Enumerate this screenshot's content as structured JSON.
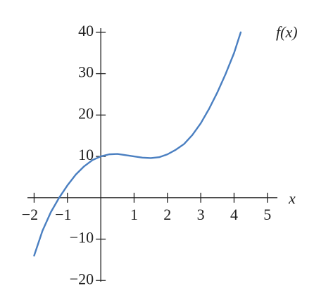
{
  "chart_data": {
    "type": "line",
    "x": [
      -2,
      -1.75,
      -1.5,
      -1.25,
      -1,
      -0.75,
      -0.5,
      -0.25,
      0,
      0.25,
      0.5,
      0.75,
      1,
      1.25,
      1.5,
      1.75,
      2,
      2.25,
      2.5,
      2.75,
      3,
      3.25,
      3.5,
      3.75,
      4,
      4.2
    ],
    "series": [
      {
        "name": "f(x)",
        "color": "#4a7fc1",
        "values": [
          -14,
          -8,
          -3.5,
          0,
          3,
          5.6,
          7.6,
          9.1,
          10,
          10.5,
          10.6,
          10.3,
          10,
          9.7,
          9.6,
          9.8,
          10.5,
          11.6,
          13,
          15.2,
          18,
          21.5,
          25.5,
          30,
          35,
          40
        ]
      }
    ],
    "xlabel": "x",
    "xlim": [
      -2.2,
      5.3
    ],
    "ylim": [
      -20.3,
      41
    ],
    "xticks": [
      {
        "value": -2,
        "label": "−2"
      },
      {
        "value": -1,
        "label": "−1"
      },
      1,
      2,
      3,
      4,
      5
    ],
    "yticks": [
      {
        "value": -20,
        "label": "−20"
      },
      {
        "value": -10,
        "label": "−10"
      },
      10,
      20,
      30,
      40
    ],
    "grid": false
  }
}
